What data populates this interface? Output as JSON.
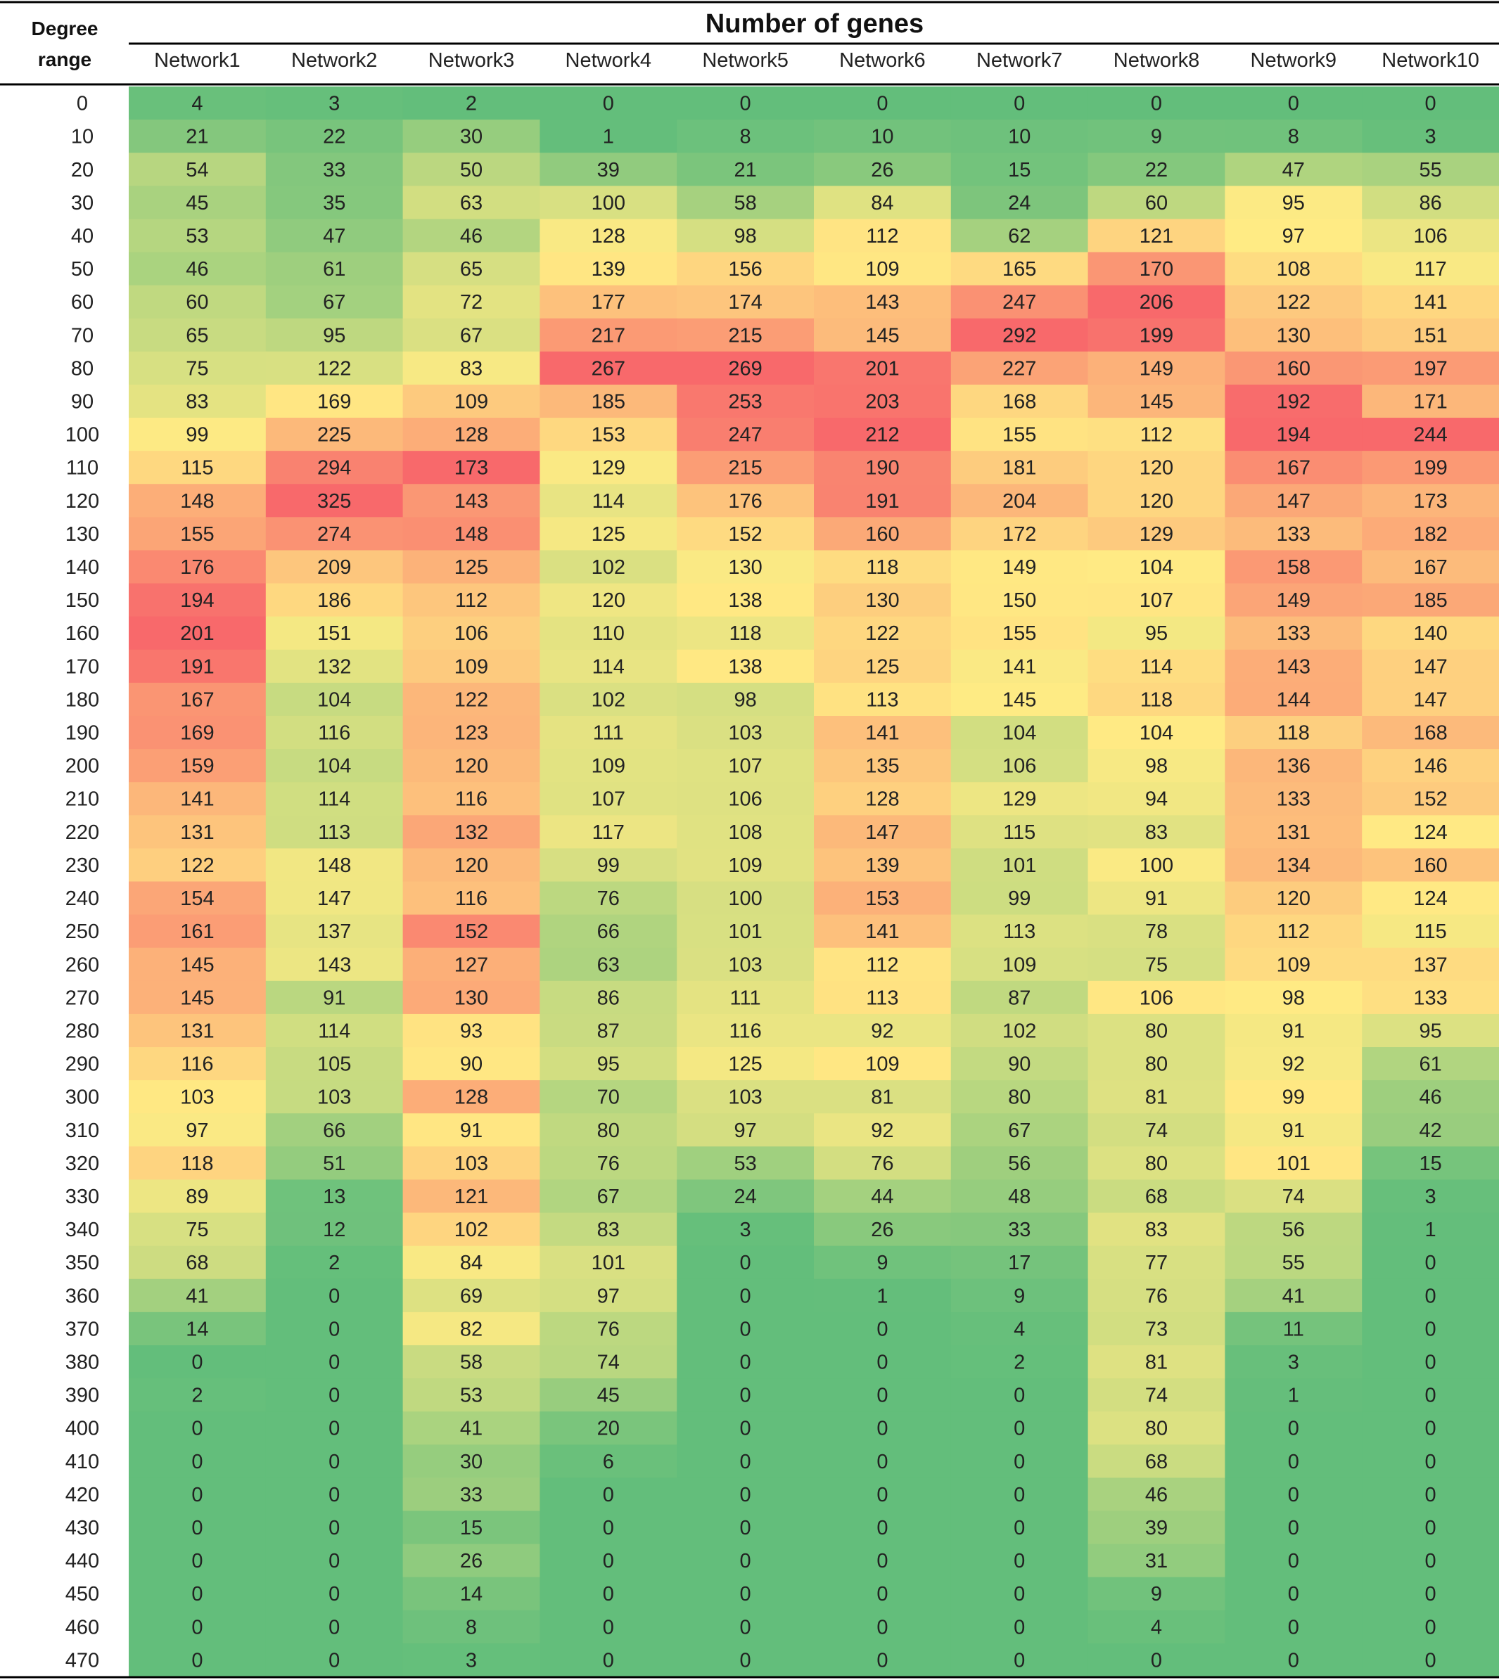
{
  "chart_data": {
    "type": "heatmap",
    "title": "Number of genes",
    "row_header": [
      "Degree",
      "range"
    ],
    "columns": [
      "Network1",
      "Network2",
      "Network3",
      "Network4",
      "Network5",
      "Network6",
      "Network7",
      "Network8",
      "Network9",
      "Network10"
    ],
    "rows": [
      0,
      10,
      20,
      30,
      40,
      50,
      60,
      70,
      80,
      90,
      100,
      110,
      120,
      130,
      140,
      150,
      160,
      170,
      180,
      190,
      200,
      210,
      220,
      230,
      240,
      250,
      260,
      270,
      280,
      290,
      300,
      310,
      320,
      330,
      340,
      350,
      360,
      370,
      380,
      390,
      400,
      410,
      420,
      430,
      440,
      450,
      460,
      470
    ],
    "values": [
      [
        4,
        3,
        2,
        0,
        0,
        0,
        0,
        0,
        0,
        0
      ],
      [
        21,
        22,
        30,
        1,
        8,
        10,
        10,
        9,
        8,
        3
      ],
      [
        54,
        33,
        50,
        39,
        21,
        26,
        15,
        22,
        47,
        55
      ],
      [
        45,
        35,
        63,
        100,
        58,
        84,
        24,
        60,
        95,
        86
      ],
      [
        53,
        47,
        46,
        128,
        98,
        112,
        62,
        121,
        97,
        106
      ],
      [
        46,
        61,
        65,
        139,
        156,
        109,
        165,
        170,
        108,
        117
      ],
      [
        60,
        67,
        72,
        177,
        174,
        143,
        247,
        206,
        122,
        141
      ],
      [
        65,
        95,
        67,
        217,
        215,
        145,
        292,
        199,
        130,
        151
      ],
      [
        75,
        122,
        83,
        267,
        269,
        201,
        227,
        149,
        160,
        197
      ],
      [
        83,
        169,
        109,
        185,
        253,
        203,
        168,
        145,
        192,
        171
      ],
      [
        99,
        225,
        128,
        153,
        247,
        212,
        155,
        112,
        194,
        244
      ],
      [
        115,
        294,
        173,
        129,
        215,
        190,
        181,
        120,
        167,
        199
      ],
      [
        148,
        325,
        143,
        114,
        176,
        191,
        204,
        120,
        147,
        173
      ],
      [
        155,
        274,
        148,
        125,
        152,
        160,
        172,
        129,
        133,
        182
      ],
      [
        176,
        209,
        125,
        102,
        130,
        118,
        149,
        104,
        158,
        167
      ],
      [
        194,
        186,
        112,
        120,
        138,
        130,
        150,
        107,
        149,
        185
      ],
      [
        201,
        151,
        106,
        110,
        118,
        122,
        155,
        95,
        133,
        140
      ],
      [
        191,
        132,
        109,
        114,
        138,
        125,
        141,
        114,
        143,
        147
      ],
      [
        167,
        104,
        122,
        102,
        98,
        113,
        145,
        118,
        144,
        147
      ],
      [
        169,
        116,
        123,
        111,
        103,
        141,
        104,
        104,
        118,
        168
      ],
      [
        159,
        104,
        120,
        109,
        107,
        135,
        106,
        98,
        136,
        146
      ],
      [
        141,
        114,
        116,
        107,
        106,
        128,
        129,
        94,
        133,
        152
      ],
      [
        131,
        113,
        132,
        117,
        108,
        147,
        115,
        83,
        131,
        124
      ],
      [
        122,
        148,
        120,
        99,
        109,
        139,
        101,
        100,
        134,
        160
      ],
      [
        154,
        147,
        116,
        76,
        100,
        153,
        99,
        91,
        120,
        124
      ],
      [
        161,
        137,
        152,
        66,
        101,
        141,
        113,
        78,
        112,
        115
      ],
      [
        145,
        143,
        127,
        63,
        103,
        112,
        109,
        75,
        109,
        137
      ],
      [
        145,
        91,
        130,
        86,
        111,
        113,
        87,
        106,
        98,
        133
      ],
      [
        131,
        114,
        93,
        87,
        116,
        92,
        102,
        80,
        91,
        95
      ],
      [
        116,
        105,
        90,
        95,
        125,
        109,
        90,
        80,
        92,
        61
      ],
      [
        103,
        103,
        128,
        70,
        103,
        81,
        80,
        81,
        99,
        46
      ],
      [
        97,
        66,
        91,
        80,
        97,
        92,
        67,
        74,
        91,
        42
      ],
      [
        118,
        51,
        103,
        76,
        53,
        76,
        56,
        80,
        101,
        15
      ],
      [
        89,
        13,
        121,
        67,
        24,
        44,
        48,
        68,
        74,
        3
      ],
      [
        75,
        12,
        102,
        83,
        3,
        26,
        33,
        83,
        56,
        1
      ],
      [
        68,
        2,
        84,
        101,
        0,
        9,
        17,
        77,
        55,
        0
      ],
      [
        41,
        0,
        69,
        97,
        0,
        1,
        9,
        76,
        41,
        0
      ],
      [
        14,
        0,
        82,
        76,
        0,
        0,
        4,
        73,
        11,
        0
      ],
      [
        0,
        0,
        58,
        74,
        0,
        0,
        2,
        81,
        3,
        0
      ],
      [
        2,
        0,
        53,
        45,
        0,
        0,
        0,
        74,
        1,
        0
      ],
      [
        0,
        0,
        41,
        20,
        0,
        0,
        0,
        80,
        0,
        0
      ],
      [
        0,
        0,
        30,
        6,
        0,
        0,
        0,
        68,
        0,
        0
      ],
      [
        0,
        0,
        33,
        0,
        0,
        0,
        0,
        46,
        0,
        0
      ],
      [
        0,
        0,
        15,
        0,
        0,
        0,
        0,
        39,
        0,
        0
      ],
      [
        0,
        0,
        26,
        0,
        0,
        0,
        0,
        31,
        0,
        0
      ],
      [
        0,
        0,
        14,
        0,
        0,
        0,
        0,
        9,
        0,
        0
      ],
      [
        0,
        0,
        8,
        0,
        0,
        0,
        0,
        4,
        0,
        0
      ],
      [
        0,
        0,
        3,
        0,
        0,
        0,
        0,
        0,
        0,
        0
      ]
    ],
    "colors": {
      "low": "#63be7b",
      "mid": "#ffeb84",
      "high": "#f8696b",
      "text": "#222222",
      "rule": "#000000"
    },
    "color_scale": "per-column green-yellow-red"
  }
}
